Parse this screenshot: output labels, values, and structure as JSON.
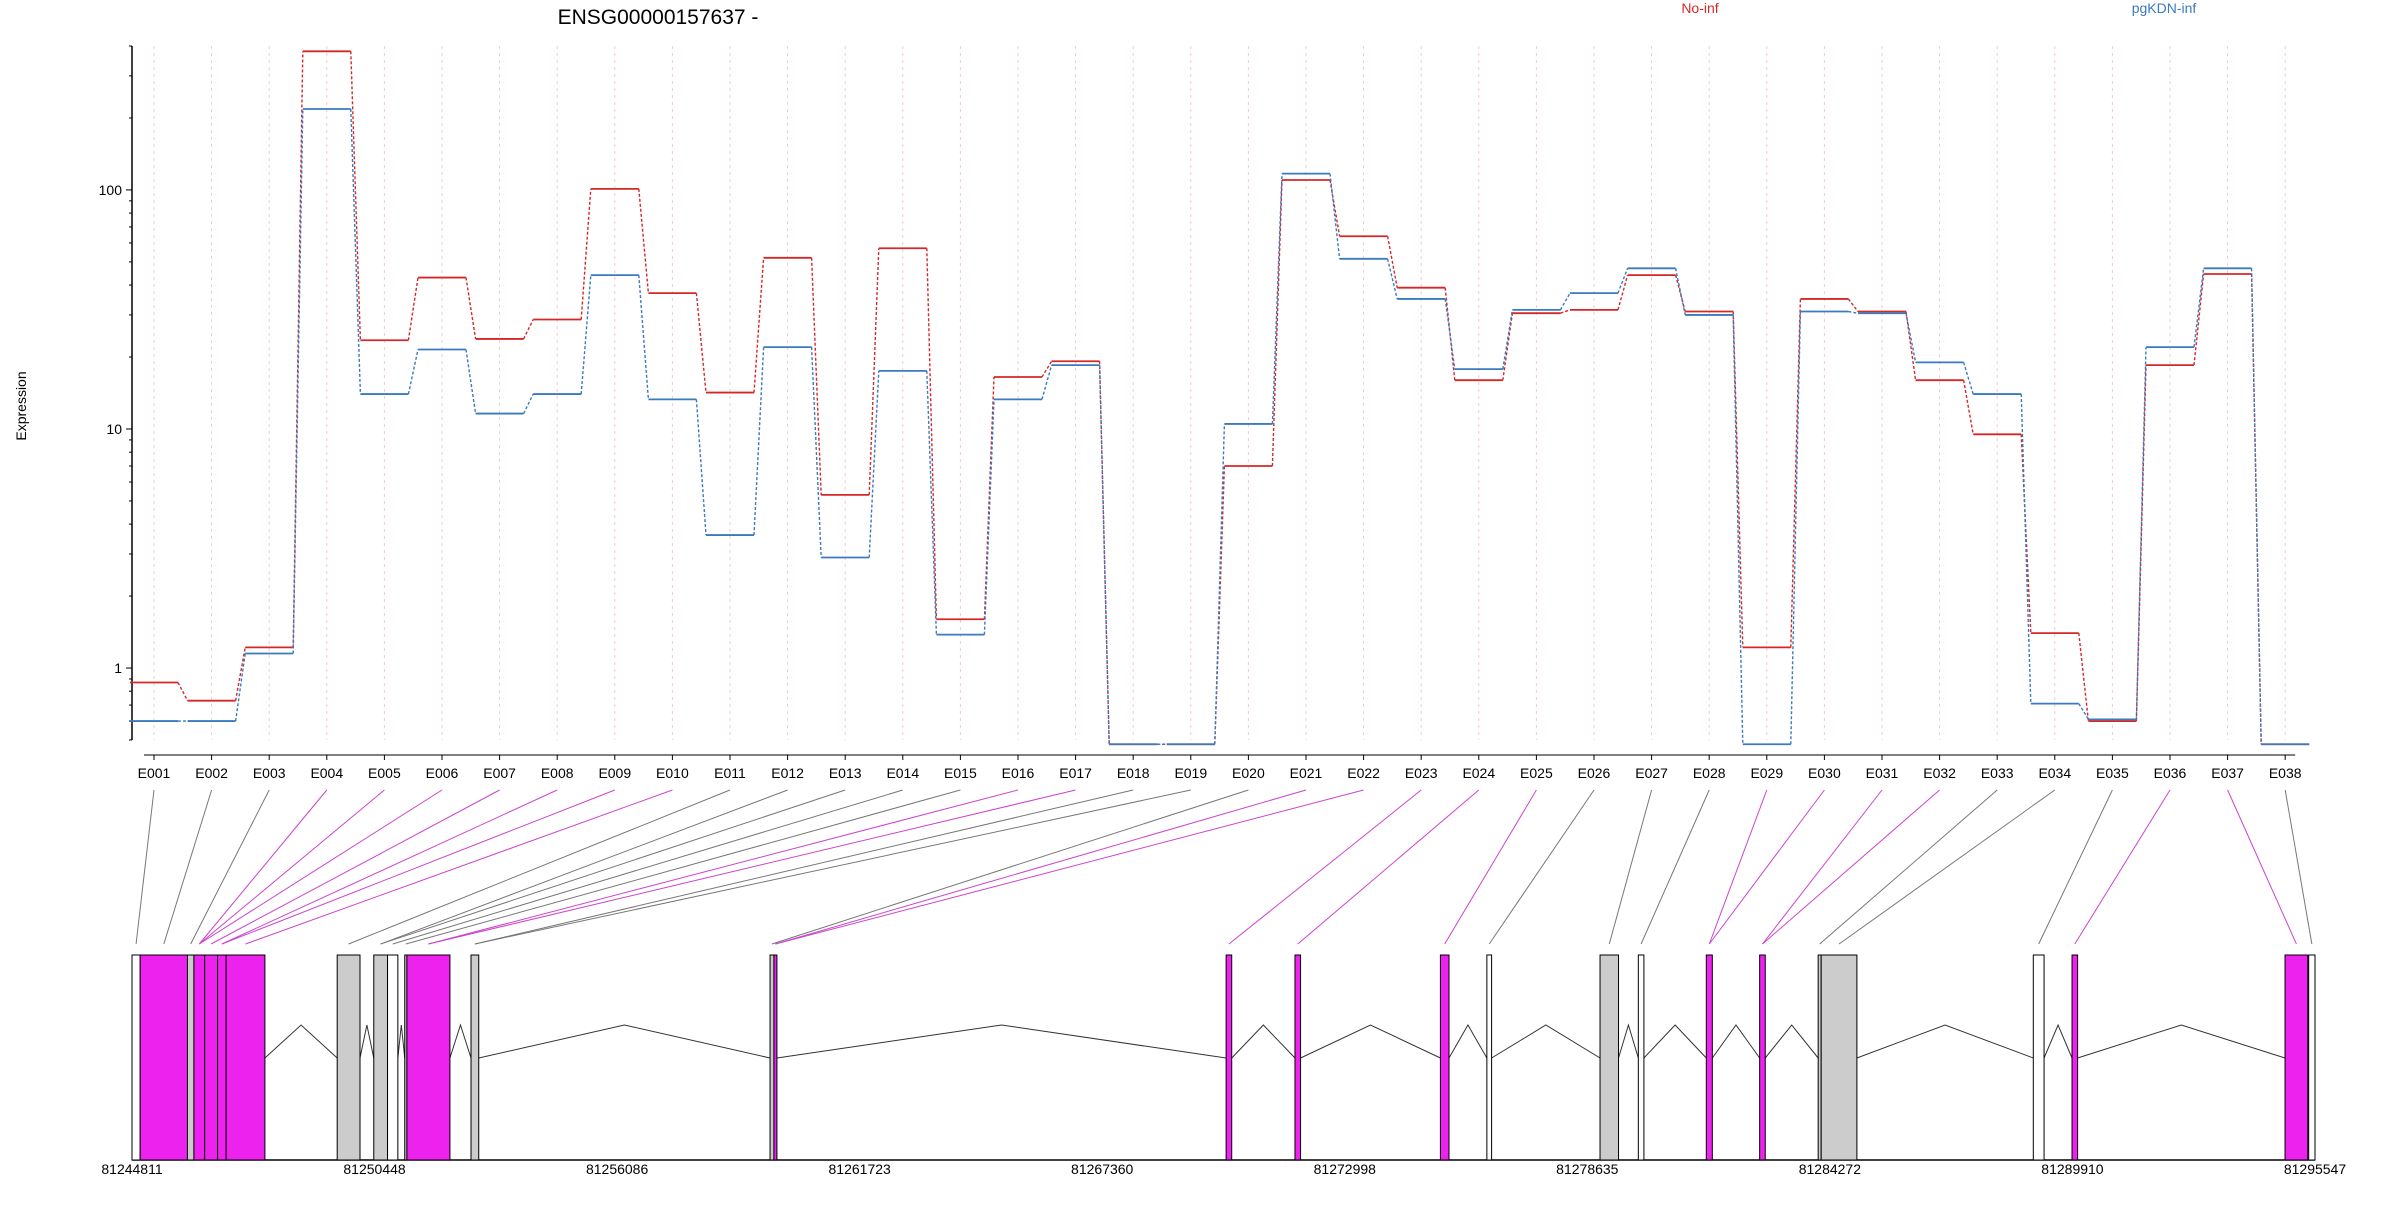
{
  "chart_data": {
    "type": "line",
    "title": "ENSG00000157637 -",
    "ylabel": "Expression",
    "y_scale": "log",
    "ylim": [
      0.5,
      400
    ],
    "y_ticks": [
      "1",
      "10",
      "100"
    ],
    "grid": "vertical dotted lines at each exon",
    "categories": [
      "E001",
      "E002",
      "E003",
      "E004",
      "E005",
      "E006",
      "E007",
      "E008",
      "E009",
      "E010",
      "E011",
      "E012",
      "E013",
      "E014",
      "E015",
      "E016",
      "E017",
      "E018",
      "E019",
      "E020",
      "E021",
      "E022",
      "E023",
      "E024",
      "E025",
      "E026",
      "E027",
      "E028",
      "E029",
      "E030",
      "E031",
      "E032",
      "E033",
      "E034",
      "E035",
      "E036",
      "E037",
      "E038"
    ],
    "series": [
      {
        "name": "No-inf",
        "color": "#d62728",
        "values": [
          0.87,
          0.73,
          1.22,
          380,
          23.5,
          43,
          23.8,
          28.7,
          101,
          37,
          14.2,
          52,
          5.3,
          57,
          1.6,
          16.5,
          19.2,
          0.48,
          0.48,
          7,
          110,
          64,
          39,
          16,
          30.5,
          31.5,
          44,
          31,
          1.22,
          35,
          31,
          16,
          9.5,
          1.4,
          0.6,
          18.5,
          44.5,
          0.48
        ]
      },
      {
        "name": "pgKDN-inf",
        "color": "#3a7abf",
        "values": [
          0.6,
          0.6,
          1.15,
          218,
          14,
          21.5,
          11.6,
          14,
          44,
          13.3,
          3.6,
          22,
          2.9,
          17.5,
          1.38,
          13.3,
          18.5,
          0.48,
          0.48,
          10.5,
          117,
          51.5,
          35,
          17.8,
          31.5,
          37,
          47,
          30,
          0.48,
          31,
          30.5,
          19,
          14,
          0.71,
          0.61,
          22,
          47,
          0.48
        ]
      }
    ],
    "legend": [
      "No-inf",
      "pgKDN-inf"
    ],
    "legend_placement": "top",
    "genome_axis_ticks": [
      "81244811",
      "81250448",
      "81256086",
      "81261723",
      "81267360",
      "81272998",
      "81278635",
      "81284272",
      "81289910",
      "81295547"
    ],
    "genome_range": [
      81244811,
      81295547
    ],
    "exon_colors": {
      "significant": "#ee22ee",
      "not_significant": "#cccccc",
      "low": "#ffffff"
    },
    "exons": [
      {
        "id": "E001",
        "start": 81244811,
        "end": 81245000,
        "status": "low"
      },
      {
        "id": "E002",
        "start": 81245000,
        "end": 81246100,
        "status": "significant"
      },
      {
        "id": "E003",
        "start": 81246100,
        "end": 81246250,
        "status": "not_significant"
      },
      {
        "id": "E004",
        "start": 81246250,
        "end": 81246500,
        "status": "significant"
      },
      {
        "id": "E005",
        "start": 81246500,
        "end": 81246800,
        "status": "significant"
      },
      {
        "id": "E006",
        "start": 81246800,
        "end": 81247000,
        "status": "significant"
      },
      {
        "id": "E007",
        "start": 81247000,
        "end": 81247900,
        "status": "significant"
      },
      {
        "id": "E008",
        "start": 81249580,
        "end": 81250110,
        "status": "not_significant"
      },
      {
        "id": "E009",
        "start": 81250430,
        "end": 81250750,
        "status": "not_significant"
      },
      {
        "id": "E010",
        "start": 81250750,
        "end": 81250990,
        "status": "low"
      },
      {
        "id": "E011",
        "start": 81251150,
        "end": 81251200,
        "status": "not_significant"
      },
      {
        "id": "E012",
        "start": 81251200,
        "end": 81252200,
        "status": "significant"
      },
      {
        "id": "E013",
        "start": 81252690,
        "end": 81252870,
        "status": "not_significant"
      },
      {
        "id": "E014",
        "start": 81259640,
        "end": 81259730,
        "status": "not_significant"
      },
      {
        "id": "E015",
        "start": 81259730,
        "end": 81259800,
        "status": "significant"
      },
      {
        "id": "E016",
        "start": 81270240,
        "end": 81270370,
        "status": "significant"
      },
      {
        "id": "E017",
        "start": 81271840,
        "end": 81271970,
        "status": "significant"
      },
      {
        "id": "E018",
        "start": 81275220,
        "end": 81275420,
        "status": "significant"
      },
      {
        "id": "E019",
        "start": 81276300,
        "end": 81276410,
        "status": "low"
      },
      {
        "id": "E020",
        "start": 81278930,
        "end": 81279360,
        "status": "not_significant"
      },
      {
        "id": "E021",
        "start": 81279820,
        "end": 81279950,
        "status": "low"
      },
      {
        "id": "E022",
        "start": 81281400,
        "end": 81281540,
        "status": "significant"
      },
      {
        "id": "E023",
        "start": 81282640,
        "end": 81282770,
        "status": "significant"
      },
      {
        "id": "E024",
        "start": 81284000,
        "end": 81284070,
        "status": "not_significant"
      },
      {
        "id": "E025",
        "start": 81284070,
        "end": 81284900,
        "status": "not_significant"
      },
      {
        "id": "E026",
        "start": 81289000,
        "end": 81289250,
        "status": "low"
      },
      {
        "id": "E027",
        "start": 81289900,
        "end": 81290030,
        "status": "significant"
      },
      {
        "id": "E028",
        "start": 81294850,
        "end": 81295380,
        "status": "significant"
      },
      {
        "id": "E029",
        "start": 81295400,
        "end": 81295547,
        "status": "low"
      }
    ],
    "connector_targets": [
      "E001",
      "E002",
      "E003",
      "E004",
      "E004",
      "E004",
      "E005",
      "E006",
      "E006",
      "E007",
      "E008",
      "E009",
      "E009",
      "E010",
      "E011",
      "E012",
      "E012",
      "E013",
      "E013",
      "E014",
      "E015",
      "E015",
      "E016",
      "E017",
      "E018",
      "E019",
      "E020",
      "E021",
      "E022",
      "E022",
      "E023",
      "E023",
      "E024",
      "E025",
      "E026",
      "E027",
      "E028",
      "E029"
    ],
    "connector_colors": [
      "#777777",
      "#777777",
      "#777777",
      "#cc44cc",
      "#cc44cc",
      "#cc44cc",
      "#cc44cc",
      "#cc44cc",
      "#cc44cc",
      "#cc44cc",
      "#777777",
      "#777777",
      "#777777",
      "#777777",
      "#777777",
      "#cc44cc",
      "#cc44cc",
      "#777777",
      "#777777",
      "#777777",
      "#cc44cc",
      "#cc44cc",
      "#cc44cc",
      "#cc44cc",
      "#cc44cc",
      "#777777",
      "#777777",
      "#777777",
      "#cc44cc",
      "#cc44cc",
      "#cc44cc",
      "#cc44cc",
      "#777777",
      "#777777",
      "#777777",
      "#cc44cc",
      "#cc44cc",
      "#777777"
    ]
  }
}
